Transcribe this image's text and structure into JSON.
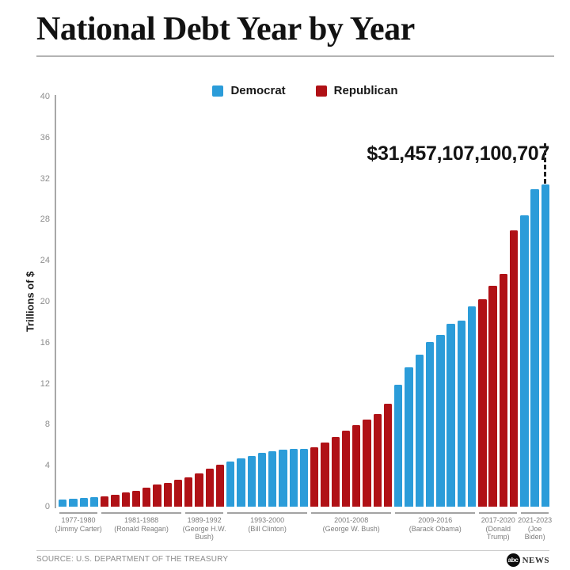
{
  "title": "National Debt Year by Year",
  "legend": {
    "democrat": {
      "label": "Democrat",
      "color": "#2B9CD9"
    },
    "republican": {
      "label": "Republican",
      "color": "#B01116"
    }
  },
  "chart_data": {
    "type": "bar",
    "title": "National Debt Year by Year",
    "xlabel": "",
    "ylabel": "Trillions of $",
    "ylim": [
      0,
      40
    ],
    "yticks": [
      0,
      4,
      8,
      12,
      16,
      20,
      24,
      28,
      32,
      36,
      40
    ],
    "grid": false,
    "legend_position": "top-center",
    "annotation": {
      "text": "$31,457,107,100,707",
      "points_to_year": "2023",
      "value_trillions": 31.457107100707
    },
    "party_colors": {
      "Democrat": "#2B9CD9",
      "Republican": "#B01116"
    },
    "groups": [
      {
        "range": "1977-1980",
        "president_lines": [
          "(Jimmy Carter)"
        ],
        "party": "Democrat",
        "values": [
          0.7,
          0.77,
          0.83,
          0.91
        ]
      },
      {
        "range": "1981-1988",
        "president_lines": [
          "(Ronald Reagan)"
        ],
        "party": "Republican",
        "values": [
          1.0,
          1.14,
          1.38,
          1.57,
          1.82,
          2.13,
          2.35,
          2.6
        ]
      },
      {
        "range": "1989-1992",
        "president_lines": [
          "(George H.W.",
          "Bush)"
        ],
        "party": "Republican",
        "values": [
          2.86,
          3.23,
          3.67,
          4.06
        ]
      },
      {
        "range": "1993-2000",
        "president_lines": [
          "(Bill Clinton)"
        ],
        "party": "Democrat",
        "values": [
          4.41,
          4.69,
          4.97,
          5.22,
          5.41,
          5.53,
          5.66,
          5.67
        ]
      },
      {
        "range": "2001-2008",
        "president_lines": [
          "(George W. Bush)"
        ],
        "party": "Republican",
        "values": [
          5.81,
          6.23,
          6.78,
          7.38,
          7.93,
          8.51,
          9.01,
          10.02
        ]
      },
      {
        "range": "2009-2016",
        "president_lines": [
          "(Barack Obama)"
        ],
        "party": "Democrat",
        "values": [
          11.91,
          13.56,
          14.79,
          16.07,
          16.74,
          17.82,
          18.15,
          19.57
        ]
      },
      {
        "range": "2017-2020",
        "president_lines": [
          "(Donald",
          "Trump)"
        ],
        "party": "Republican",
        "values": [
          20.24,
          21.52,
          22.72,
          26.95
        ]
      },
      {
        "range": "2021-2023",
        "president_lines": [
          "(Joe",
          "Biden)"
        ],
        "party": "Democrat",
        "values": [
          28.43,
          30.93,
          31.46
        ]
      }
    ]
  },
  "footer": {
    "source": "SOURCE: U.S. DEPARTMENT OF THE TREASURY",
    "logo_abc": "abc",
    "logo_news": "NEWS"
  }
}
